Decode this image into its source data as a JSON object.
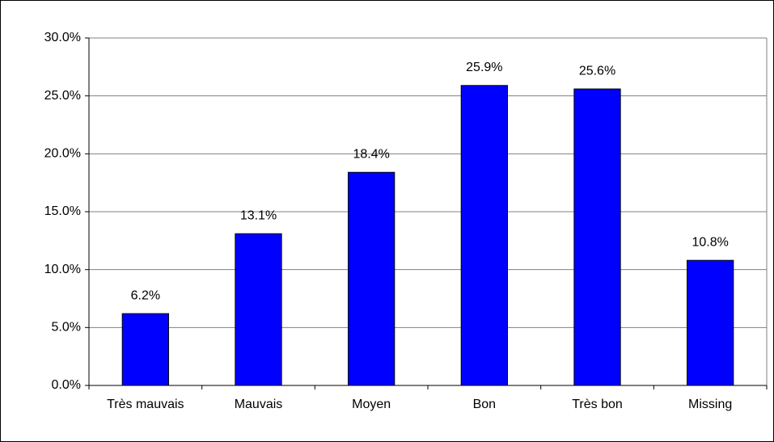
{
  "chart_data": {
    "type": "bar",
    "categories": [
      "Très mauvais",
      "Mauvais",
      "Moyen",
      "Bon",
      "Très bon",
      "Missing"
    ],
    "values": [
      6.2,
      13.1,
      18.4,
      25.9,
      25.6,
      10.8
    ],
    "value_labels": [
      "6.2%",
      "13.1%",
      "18.4%",
      "25.9%",
      "25.6%",
      "10.8%"
    ],
    "color": "#0000ff",
    "ylim": [
      0,
      30
    ],
    "yticks": [
      {
        "value": 0,
        "label": "0.0%"
      },
      {
        "value": 5,
        "label": "5.0%"
      },
      {
        "value": 10,
        "label": "10.0%"
      },
      {
        "value": 15,
        "label": "15.0%"
      },
      {
        "value": 20,
        "label": "20.0%"
      },
      {
        "value": 25,
        "label": "25.0%"
      },
      {
        "value": 30,
        "label": "30.0%"
      }
    ],
    "grid": true
  }
}
